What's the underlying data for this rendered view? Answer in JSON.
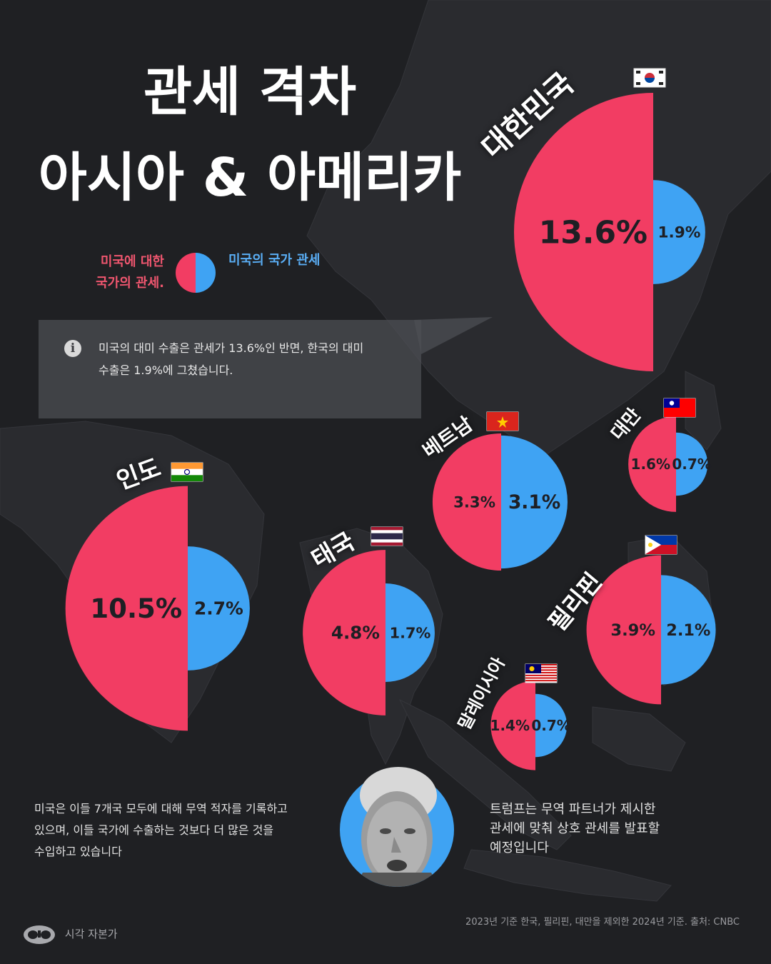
{
  "title": {
    "line1": "관세 격차",
    "line2": "아시아 & 아메리카"
  },
  "legend": {
    "red_label_line1": "미국에 대한",
    "red_label_line2": "국가의 관세.",
    "blue_label": "미국의 국가 관세"
  },
  "info": {
    "line1": "미국의 대미 수출은 관세가 13.6%인 반면, 한국의 대미",
    "line2": "수출은 1.9%에 그쳤습니다."
  },
  "notes": {
    "left_line1": "미국은 이들 7개국 모두에 대해 무역 적자를 기록하고",
    "left_line2": "있으며, 이들 국가에 수출하는 것보다 더 많은 것을",
    "left_line3": "수입하고 있습니다",
    "right_line1": "트럼프는 무역 파트너가 제시한",
    "right_line2": "관세에 맞춰 상호 관세를 발표할",
    "right_line3": "예정입니다"
  },
  "source": "2023년 기준 한국, 필리핀, 대만을 제외한 2024년 기준. 출처: CNBC",
  "brand": {
    "name": "시각 자본가"
  },
  "colors": {
    "red": "#f23d63",
    "blue": "#3fa3f3",
    "bg": "#1f2023"
  },
  "chart_data": {
    "type": "pie",
    "description_series": [
      {
        "name": "미국에 대한 국가의 관세.",
        "color": "#f23d63"
      },
      {
        "name": "미국의 국가 관세",
        "color": "#3fa3f3"
      }
    ],
    "unit": "%",
    "countries": [
      {
        "name": "대한민국",
        "flag": "kr",
        "to_us": 13.6,
        "us_to": 1.9,
        "to_us_label": "13.6%",
        "us_to_label": "1.9%"
      },
      {
        "name": "인도",
        "flag": "in",
        "to_us": 10.5,
        "us_to": 2.7,
        "to_us_label": "10.5%",
        "us_to_label": "2.7%"
      },
      {
        "name": "태국",
        "flag": "th",
        "to_us": 4.8,
        "us_to": 1.7,
        "to_us_label": "4.8%",
        "us_to_label": "1.7%"
      },
      {
        "name": "베트남",
        "flag": "vn",
        "to_us": 3.3,
        "us_to": 3.1,
        "to_us_label": "3.3%",
        "us_to_label": "3.1%"
      },
      {
        "name": "대만",
        "flag": "tw",
        "to_us": 1.6,
        "us_to": 0.7,
        "to_us_label": "1.6%",
        "us_to_label": "0.7%"
      },
      {
        "name": "필리핀",
        "flag": "ph",
        "to_us": 3.9,
        "us_to": 2.1,
        "to_us_label": "3.9%",
        "us_to_label": "2.1%"
      },
      {
        "name": "말레이시아",
        "flag": "my",
        "to_us": 1.4,
        "us_to": 0.7,
        "to_us_label": "1.4%",
        "us_to_label": "0.7%"
      }
    ]
  }
}
